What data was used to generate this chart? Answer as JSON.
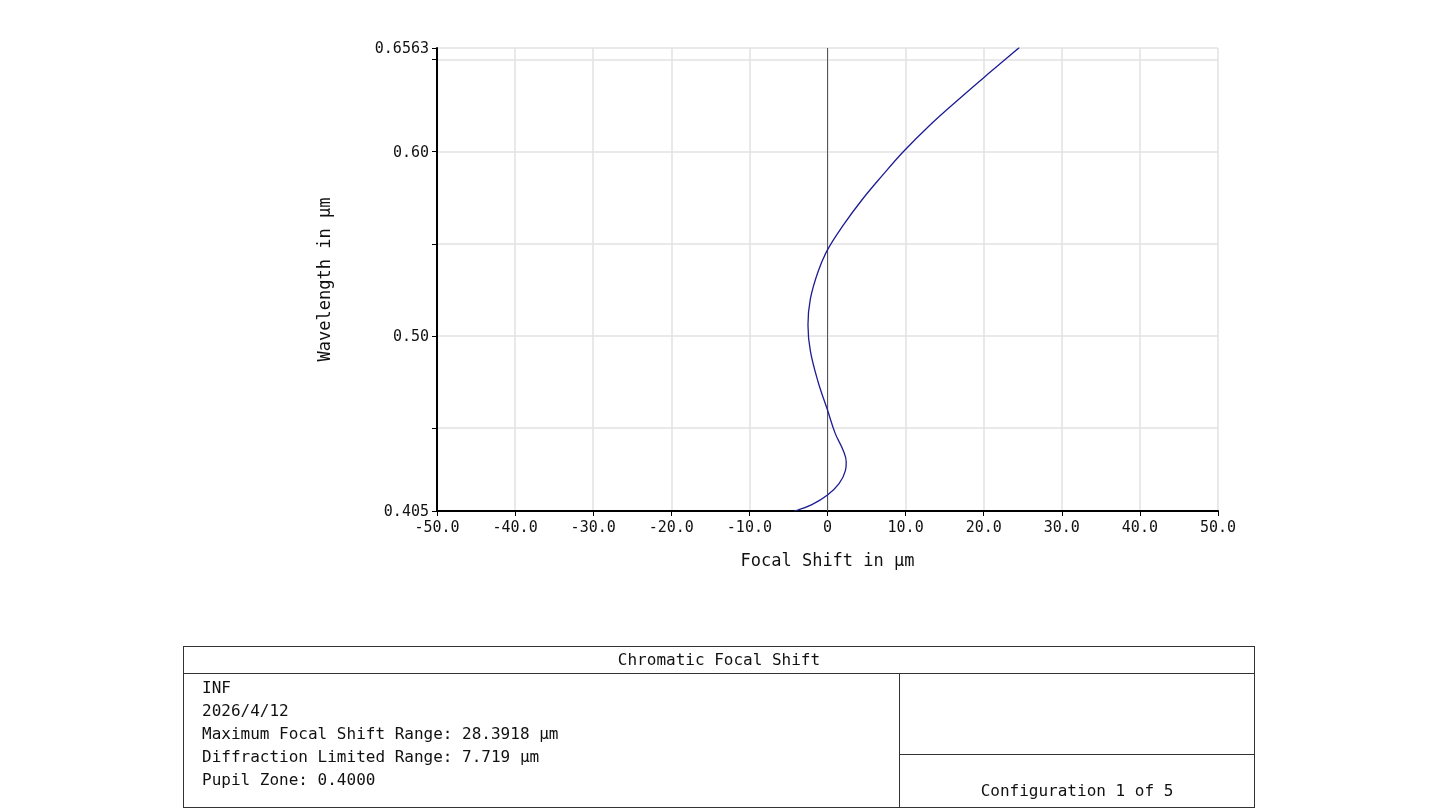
{
  "chart_data": {
    "type": "line",
    "title": "Chromatic Focal Shift",
    "xlabel": "Focal Shift in µm",
    "ylabel": "Wavelength in µm",
    "series": [
      {
        "color": "#1c1c94",
        "x": [
          -4.2,
          -2.0,
          0,
          1.5,
          2.3,
          2.4,
          2.0,
          1.0,
          0,
          -1.2,
          -2.2,
          -2.5,
          -2.2,
          -1.2,
          0,
          2.0,
          4.4,
          7.0,
          9.7,
          13.0,
          16.7,
          20.5,
          24.5
        ],
        "values": [
          0.405,
          0.4085,
          0.4137,
          0.42,
          0.427,
          0.4316,
          0.438,
          0.447,
          0.4598,
          0.475,
          0.492,
          0.506,
          0.52,
          0.535,
          0.5467,
          0.56,
          0.5738,
          0.587,
          0.6,
          0.614,
          0.6281,
          0.642,
          0.6563
        ]
      }
    ],
    "xlim": [
      -50,
      50
    ],
    "xticks": [
      {
        "value": -50,
        "label": "-50.0"
      },
      {
        "value": -40,
        "label": "-40.0"
      },
      {
        "value": -30,
        "label": "-30.0"
      },
      {
        "value": -20,
        "label": "-20.0"
      },
      {
        "value": -10,
        "label": "-10.0"
      },
      0,
      {
        "value": 10,
        "label": "10.0"
      },
      {
        "value": 20,
        "label": "20.0"
      },
      {
        "value": 30,
        "label": "30.0"
      },
      {
        "value": 40,
        "label": "40.0"
      },
      {
        "value": 50,
        "label": "50.0"
      }
    ],
    "ylim": [
      0.405,
      0.6563
    ],
    "yticks": [
      0.405,
      {
        "value": 0.45,
        "label": null
      },
      {
        "value": 0.5,
        "label": "0.50"
      },
      {
        "value": 0.55,
        "label": null
      },
      {
        "value": 0.6,
        "label": "0.60"
      },
      {
        "value": 0.65,
        "label": null
      },
      0.6563
    ],
    "ref_lines": [
      {
        "axis": "x",
        "value": 0,
        "color": "#555555"
      }
    ],
    "grid": true,
    "marker": "none",
    "line_style": "solid",
    "annotations": [
      "INF",
      "2026/4/12",
      "Maximum Focal Shift Range: 28.3918 µm",
      "Diffraction Limited Range: 7.719 µm",
      "Pupil Zone: 0.4000",
      "Configuration 1 of 5"
    ]
  }
}
